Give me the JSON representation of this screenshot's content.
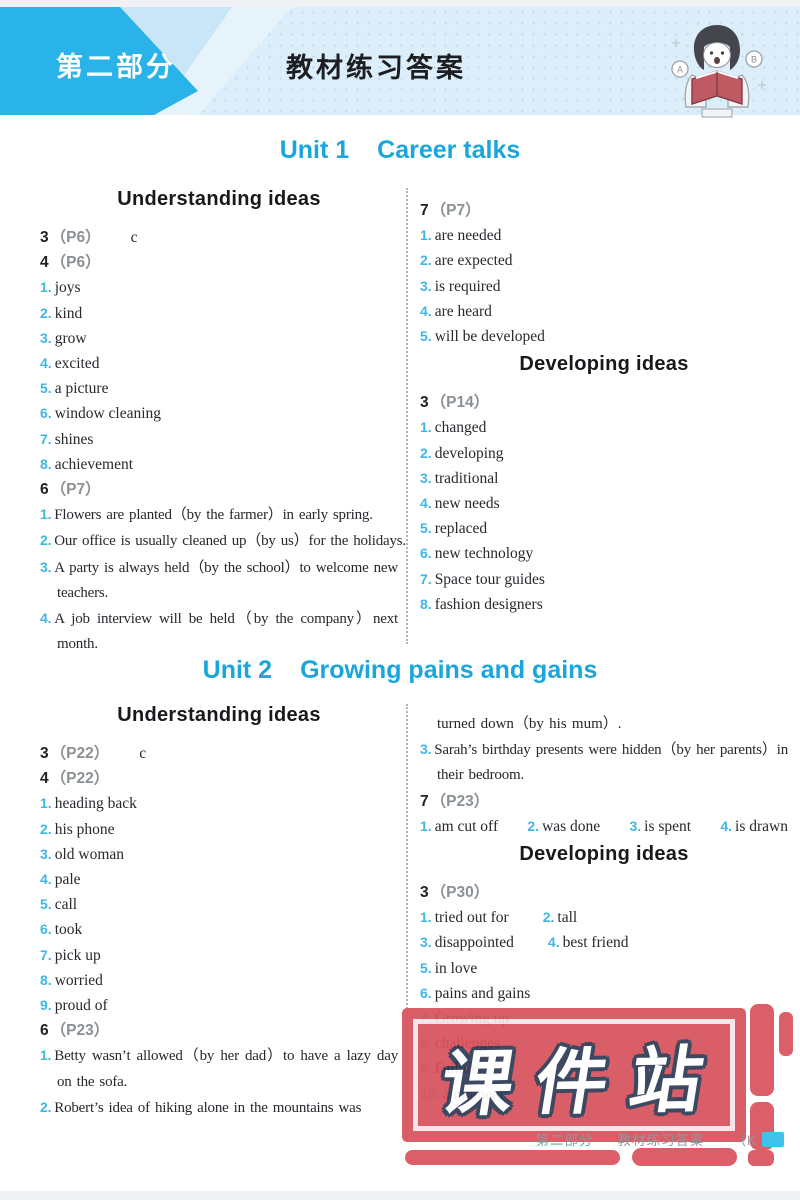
{
  "header": {
    "tab": "第二部分",
    "title": "教材练习答案",
    "mascot_badges": [
      "A",
      "B"
    ]
  },
  "footer": {
    "part": "第二部分",
    "title": "教材练习答案",
    "paren": "（K"
  },
  "stamp": {
    "text": "课件站"
  },
  "colors": {
    "banner_cyan": "#2ab3e9",
    "banner_light1": "#c8e6f7",
    "banner_light2": "#e6f3fb",
    "header_band": "#dceef9",
    "unit_title": "#1aa6dd",
    "item_number": "#3fb6e4",
    "stamp_red": "#d8525c",
    "page_chip": "#41c1ea"
  },
  "units": [
    {
      "number": "Unit 1",
      "name": "Career talks",
      "columns": [
        {
          "blocks": [
            {
              "type": "section",
              "text": "Understanding ideas"
            },
            {
              "type": "exercise",
              "num": "3",
              "page": "（P6）",
              "answer": "c"
            },
            {
              "type": "exercise",
              "num": "4",
              "page": "（P6）"
            },
            {
              "type": "item",
              "num": "1",
              "text": "joys"
            },
            {
              "type": "item",
              "num": "2",
              "text": "kind"
            },
            {
              "type": "item",
              "num": "3",
              "text": "grow"
            },
            {
              "type": "item",
              "num": "4",
              "text": "excited"
            },
            {
              "type": "item",
              "num": "5",
              "text": "a picture"
            },
            {
              "type": "item",
              "num": "6",
              "text": "window cleaning"
            },
            {
              "type": "item",
              "num": "7",
              "text": "shines"
            },
            {
              "type": "item",
              "num": "8",
              "text": "achievement"
            },
            {
              "type": "exercise",
              "num": "6",
              "page": "（P7）"
            },
            {
              "type": "item",
              "num": "1",
              "text": "Flowers are planted（by the farmer）in early spring.",
              "sent": true,
              "nowrap": true
            },
            {
              "type": "item",
              "num": "2",
              "text": "Our office is usually cleaned up（by us）for the holidays.",
              "sent": true,
              "nowrap": true
            },
            {
              "type": "item",
              "num": "3",
              "text": "A party is always held（by the school）to welcome new teachers.",
              "sent": true
            },
            {
              "type": "item",
              "num": "4",
              "text": "A job interview will be held（by the company）next month.",
              "sent": true
            }
          ]
        },
        {
          "blocks": [
            {
              "type": "exercise",
              "num": "7",
              "page": "（P7）"
            },
            {
              "type": "item",
              "num": "1",
              "text": "are needed"
            },
            {
              "type": "item",
              "num": "2",
              "text": "are expected"
            },
            {
              "type": "item",
              "num": "3",
              "text": "is required"
            },
            {
              "type": "item",
              "num": "4",
              "text": "are heard"
            },
            {
              "type": "item",
              "num": "5",
              "text": "will be developed"
            },
            {
              "type": "section",
              "text": "Developing ideas"
            },
            {
              "type": "exercise",
              "num": "3",
              "page": "（P14）"
            },
            {
              "type": "item",
              "num": "1",
              "text": "changed"
            },
            {
              "type": "item",
              "num": "2",
              "text": "developing"
            },
            {
              "type": "item",
              "num": "3",
              "text": "traditional"
            },
            {
              "type": "item",
              "num": "4",
              "text": "new needs"
            },
            {
              "type": "item",
              "num": "5",
              "text": "replaced"
            },
            {
              "type": "item",
              "num": "6",
              "text": "new technology"
            },
            {
              "type": "item",
              "num": "7",
              "text": "Space tour guides"
            },
            {
              "type": "item",
              "num": "8",
              "text": "fashion designers"
            }
          ]
        }
      ]
    },
    {
      "number": "Unit 2",
      "name": "Growing pains and gains",
      "columns": [
        {
          "blocks": [
            {
              "type": "section",
              "text": "Understanding ideas"
            },
            {
              "type": "exercise",
              "num": "3",
              "page": "（P22）",
              "answer": "c"
            },
            {
              "type": "exercise",
              "num": "4",
              "page": "（P22）"
            },
            {
              "type": "item",
              "num": "1",
              "text": "heading back"
            },
            {
              "type": "item",
              "num": "2",
              "text": "his phone"
            },
            {
              "type": "item",
              "num": "3",
              "text": "old woman"
            },
            {
              "type": "item",
              "num": "4",
              "text": "pale"
            },
            {
              "type": "item",
              "num": "5",
              "text": "call"
            },
            {
              "type": "item",
              "num": "6",
              "text": "took"
            },
            {
              "type": "item",
              "num": "7",
              "text": "pick up"
            },
            {
              "type": "item",
              "num": "8",
              "text": "worried"
            },
            {
              "type": "item",
              "num": "9",
              "text": "proud of"
            },
            {
              "type": "exercise",
              "num": "6",
              "page": "（P23）"
            },
            {
              "type": "item",
              "num": "1",
              "text": "Betty wasn’t allowed（by her dad）to have a lazy day on the sofa.",
              "sent": true
            },
            {
              "type": "item",
              "num": "2",
              "text": "Robert’s idea of hiking alone in the mountains was",
              "sent": true,
              "nowrap": true
            }
          ]
        },
        {
          "blocks": [
            {
              "type": "cont",
              "text": "turned down（by his mum）."
            },
            {
              "type": "item",
              "num": "3",
              "text": "Sarah’s birthday presents were hidden（by her parents）in their bedroom.",
              "sent": true
            },
            {
              "type": "exercise",
              "num": "7",
              "page": "（P23）"
            },
            {
              "type": "row",
              "spread": true,
              "parts": [
                {
                  "num": "1",
                  "text": "am cut off"
                },
                {
                  "num": "2",
                  "text": "was done"
                },
                {
                  "num": "3",
                  "text": "is spent"
                },
                {
                  "num": "4",
                  "text": "is drawn"
                }
              ]
            },
            {
              "type": "section",
              "text": "Developing ideas"
            },
            {
              "type": "exercise",
              "num": "3",
              "page": "（P30）"
            },
            {
              "type": "row",
              "parts": [
                {
                  "num": "1",
                  "text": "tried out for"
                },
                {
                  "num": "2",
                  "text": "tall"
                }
              ]
            },
            {
              "type": "row",
              "parts": [
                {
                  "num": "3",
                  "text": "disappointed"
                },
                {
                  "num": "4",
                  "text": "best friend"
                }
              ]
            },
            {
              "type": "item",
              "num": "5",
              "text": "in love"
            },
            {
              "type": "item",
              "num": "6",
              "text": "pains and gains"
            },
            {
              "type": "item",
              "num": "7",
              "text": "Growing up"
            },
            {
              "type": "item",
              "num": "8",
              "text": "challenges"
            },
            {
              "type": "item",
              "num": "9",
              "text": "Failure"
            },
            {
              "type": "item",
              "num": "10",
              "text": "a moment"
            }
          ]
        }
      ]
    }
  ]
}
